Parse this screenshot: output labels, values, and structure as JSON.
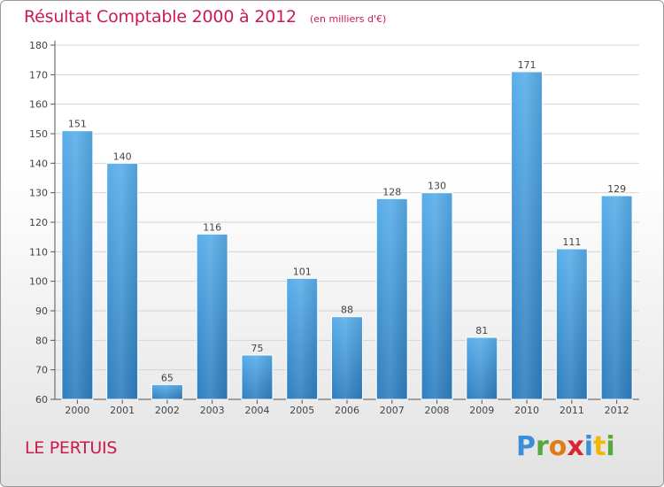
{
  "chart_data": {
    "type": "bar",
    "title": "Résultat Comptable 2000 à 2012",
    "subtitle": "(en milliers d'€)",
    "xlabel": "",
    "ylabel": "",
    "categories": [
      "2000",
      "2001",
      "2002",
      "2003",
      "2004",
      "2005",
      "2006",
      "2007",
      "2008",
      "2009",
      "2010",
      "2011",
      "2012"
    ],
    "values": [
      151,
      140,
      65,
      116,
      75,
      101,
      88,
      128,
      130,
      81,
      171,
      111,
      129
    ],
    "ylim": [
      60,
      180
    ],
    "yticks": [
      60,
      70,
      80,
      90,
      100,
      110,
      120,
      130,
      140,
      150,
      160,
      170,
      180
    ],
    "grid": true,
    "legend": "none"
  },
  "footer": {
    "place": "LE PERTUIS",
    "logo_text": "Proxiti"
  },
  "colors": {
    "bar_top": "#5aaeea",
    "bar_bottom": "#2f7fc0",
    "title": "#cc1a4e",
    "axis": "#555555"
  }
}
